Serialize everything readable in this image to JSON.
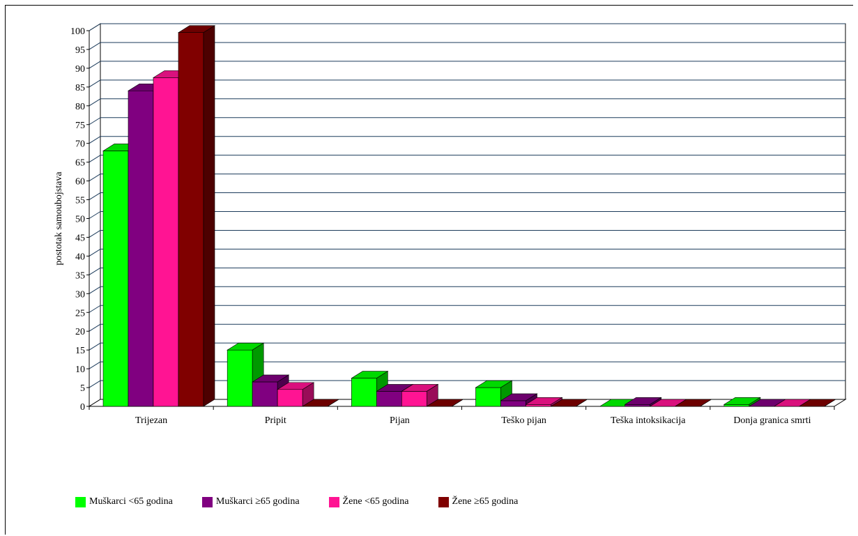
{
  "chart_data": {
    "type": "bar",
    "ylabel": "postotak samoubojstava",
    "ylim": [
      0,
      100
    ],
    "ytick_step": 5,
    "grid": true,
    "legend_position": "bottom",
    "categories": [
      "Trijezan",
      "Pripit",
      "Pijan",
      "Teško pijan",
      "Teška intoksikacija",
      "Donja granica smrti"
    ],
    "series": [
      {
        "name": "Muškarci <65 godina",
        "color": "#00ff00",
        "values": [
          68,
          15,
          7.5,
          5,
          0,
          0.5
        ]
      },
      {
        "name": "Muškarci ≥65 godina",
        "color": "#800080",
        "values": [
          84,
          6.5,
          4,
          1.5,
          0.5,
          0
        ]
      },
      {
        "name": "Žene <65 godina",
        "color": "#ff1493",
        "values": [
          87.5,
          4.5,
          4,
          0.5,
          0,
          0
        ]
      },
      {
        "name": "Žene ≥65 godina",
        "color": "#800000",
        "values": [
          99.5,
          0,
          0,
          0,
          0,
          0
        ]
      }
    ]
  }
}
